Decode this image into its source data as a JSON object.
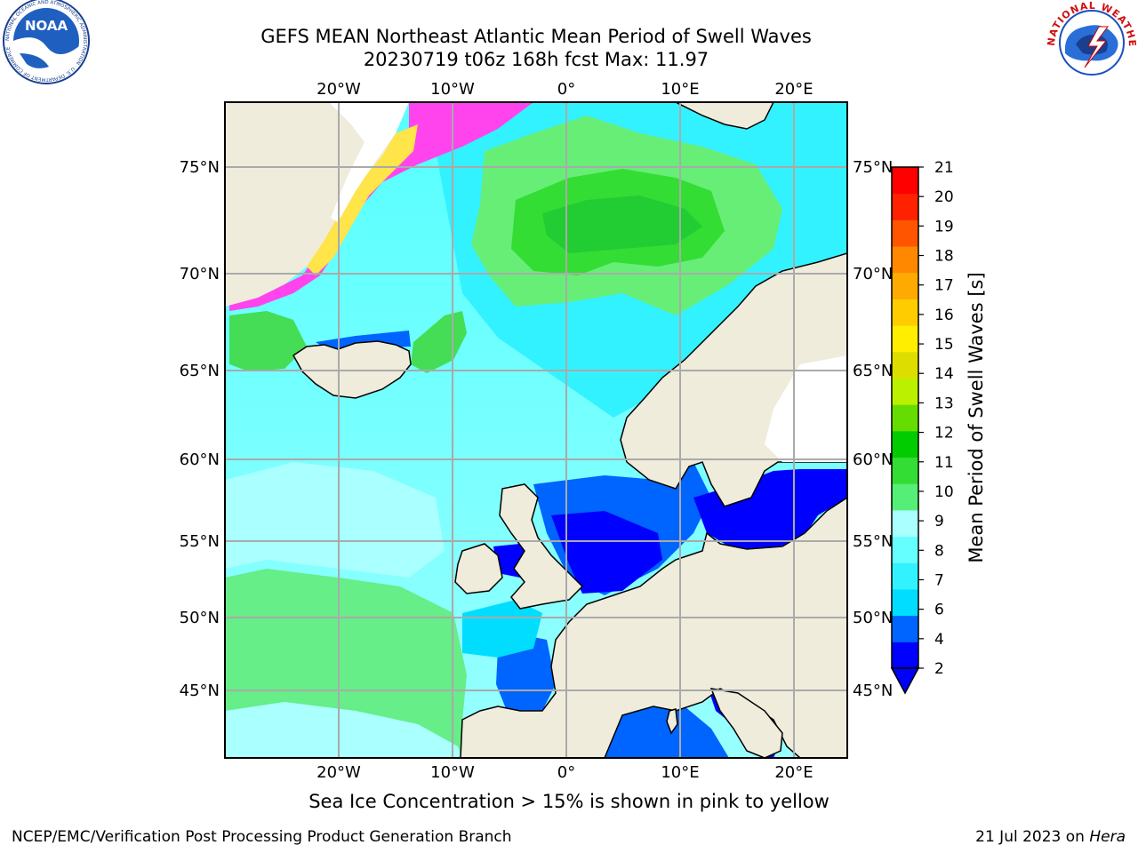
{
  "title": {
    "line1": "GEFS MEAN Northeast Atlantic Mean Period of Swell Waves",
    "line2": "20230719 t06z 168h fcst   Max: 11.97"
  },
  "logos": {
    "noaa_text": "NOAA",
    "noaa_ring": "NATIONAL OCEANIC AND ATMOSPHERIC ADMINISTRATION · U.S. DEPARTMENT OF COMMERCE",
    "nws_ring": "NATIONAL WEATHER SERVICE"
  },
  "map": {
    "lon_labels": [
      "20°W",
      "10°W",
      "0°",
      "10°E",
      "20°E"
    ],
    "lat_labels": [
      "75°N",
      "70°N",
      "65°N",
      "60°N",
      "55°N",
      "50°N",
      "45°N"
    ],
    "grid": true,
    "colors": {
      "land": "#efecdc",
      "ice_free_land": "#ffffff",
      "grid": "#aaaaaa",
      "coast": "#000000",
      "ice_pink": "#ff44ee",
      "ice_yellow": "#ffe44a"
    }
  },
  "colorbar": {
    "label": "Mean Period of Swell Waves [s]",
    "ticks": [
      "2",
      "4",
      "6",
      "7",
      "8",
      "9",
      "10",
      "11",
      "12",
      "13",
      "14",
      "15",
      "16",
      "17",
      "18",
      "19",
      "20",
      "21"
    ],
    "colors": [
      "#0000ff",
      "#0064ff",
      "#00ddff",
      "#33f2ff",
      "#66ffff",
      "#aaffff",
      "#55ee77",
      "#33dd33",
      "#00cc00",
      "#66dd00",
      "#bbf000",
      "#dddd00",
      "#ffee00",
      "#ffcc00",
      "#ffaa00",
      "#ff8800",
      "#ff5500",
      "#ff2200",
      "#ff0000"
    ],
    "extend": "min"
  },
  "note": "Sea Ice Concentration > 15% is shown in pink to yellow",
  "footer": {
    "left": "NCEP/EMC/Verification Post Processing Product Generation Branch",
    "right_prefix": "21 Jul 2023 on ",
    "right_machine": "Hera"
  }
}
